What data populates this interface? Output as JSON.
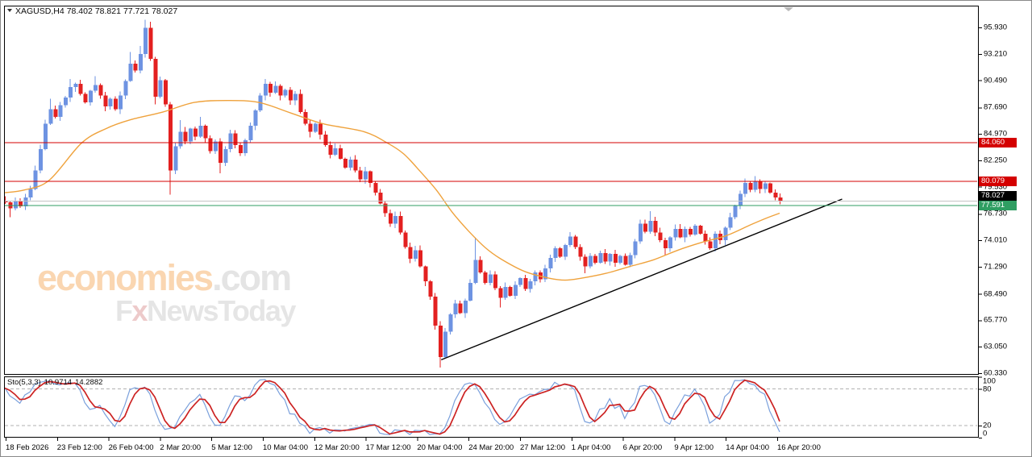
{
  "title": {
    "symbol": "XAGUSD,H4",
    "open": "78.402",
    "high": "78.821",
    "low": "77.721",
    "close": "78.027"
  },
  "watermark": {
    "brand": "economies",
    "domain": ".com",
    "fx_f": "F",
    "fx_x": "x",
    "fx_rest": "NewsToday"
  },
  "sto": {
    "label": "Sto(5,3,3)",
    "value_main": "10.9714",
    "value_signal": "14.2882",
    "params": [
      5,
      3,
      3
    ],
    "levels": [
      "100",
      "80",
      "20",
      "0"
    ],
    "level_values": [
      100,
      80,
      20,
      0
    ],
    "colors": {
      "main": "#7aa0dc",
      "signal": "#cc2222",
      "level_dash": "#b0b0b0"
    }
  },
  "price_axis": {
    "ticks": [
      "95.930",
      "93.210",
      "90.490",
      "87.690",
      "84.970",
      "82.250",
      "79.530",
      "76.730",
      "74.010",
      "71.290",
      "68.490",
      "65.770",
      "63.050",
      "60.330"
    ]
  },
  "time_axis": {
    "labels": [
      "18 Feb 2026",
      "23 Feb 12:00",
      "26 Feb 04:00",
      "2 Mar 20:00",
      "5 Mar 12:00",
      "10 Mar 04:00",
      "12 Mar 20:00",
      "17 Mar 12:00",
      "20 Mar 04:00",
      "24 Mar 20:00",
      "27 Mar 12:00",
      "1 Apr 04:00",
      "6 Apr 20:00",
      "9 Apr 12:00",
      "14 Apr 04:00",
      "16 Apr 20:00"
    ]
  },
  "chart_data": {
    "type": "candlestick",
    "symbol": "XAGUSD",
    "timeframe": "H4",
    "ylim": [
      60.24,
      98.17
    ],
    "pre_closes": [
      76.5,
      76.9,
      77.4,
      77.8,
      78.1
    ],
    "closes": [
      77.9,
      77.3,
      78.0,
      77.5,
      78.4,
      79.3,
      81.2,
      83.4,
      86.0,
      87.5,
      86.7,
      87.9,
      88.7,
      89.8,
      90.1,
      89.1,
      88.2,
      89.4,
      90.0,
      88.9,
      87.8,
      88.6,
      87.5,
      88.9,
      90.4,
      92.2,
      91.5,
      93.2,
      95.9,
      92.7,
      88.8,
      90.5,
      88.0,
      81.2,
      83.7,
      85.2,
      84.2,
      85.5,
      84.7,
      85.8,
      84.5,
      83.2,
      84.2,
      82.0,
      83.4,
      85.0,
      83.8,
      83.0,
      84.3,
      85.8,
      87.4,
      88.9,
      90.1,
      89.2,
      89.9,
      88.9,
      89.5,
      88.4,
      89.1,
      87.2,
      86.0,
      85.2,
      86.0,
      84.9,
      83.8,
      82.8,
      83.5,
      82.4,
      81.5,
      82.3,
      81.2,
      80.3,
      81.1,
      79.9,
      78.9,
      77.8,
      76.8,
      75.7,
      76.5,
      74.8,
      73.3,
      72.1,
      73.0,
      71.3,
      69.8,
      68.2,
      65.2,
      62.0,
      64.6,
      66.4,
      67.5,
      66.5,
      67.8,
      69.6,
      72.0,
      70.7,
      69.6,
      70.5,
      69.1,
      68.1,
      69.2,
      68.3,
      69.4,
      70.1,
      69.0,
      69.8,
      70.7,
      70.0,
      71.1,
      72.2,
      73.2,
      72.3,
      73.5,
      74.4,
      73.3,
      72.3,
      71.3,
      72.4,
      71.7,
      72.7,
      71.8,
      72.6,
      71.7,
      72.4,
      71.5,
      72.5,
      73.9,
      75.7,
      74.9,
      76.0,
      74.8,
      74.0,
      73.2,
      74.3,
      75.2,
      74.3,
      75.2,
      74.6,
      75.5,
      74.7,
      73.9,
      73.2,
      74.7,
      74.0,
      75.3,
      76.4,
      77.6,
      78.8,
      79.9,
      79.2,
      80.05,
      79.3,
      79.85,
      78.9,
      78.4,
      78.027
    ],
    "first_open": 77.6,
    "special_wicks": {
      "1": {
        "l": 76.4
      },
      "9": {
        "h": 88.6
      },
      "13": {
        "h": 90.6
      },
      "18": {
        "h": 90.9
      },
      "25": {
        "h": 93.4
      },
      "27": {
        "h": 94.0
      },
      "28": {
        "h": 96.7
      },
      "29": {
        "h": 96.5
      },
      "30": {
        "l": 88.0
      },
      "33": {
        "l": 78.7
      },
      "35": {
        "h": 86.4
      },
      "39": {
        "h": 86.7
      },
      "43": {
        "l": 80.9
      },
      "52": {
        "h": 90.6
      },
      "61": {
        "l": 84.6
      },
      "87": {
        "l": 60.9
      },
      "94": {
        "h": 74.3
      },
      "99": {
        "l": 67.1
      },
      "116": {
        "l": 70.6
      },
      "129": {
        "h": 77.0
      },
      "132": {
        "l": 72.5
      },
      "148": {
        "h": 80.35
      },
      "150": {
        "h": 80.6
      },
      "155": {
        "h": 78.821,
        "l": 77.721
      }
    },
    "colors": {
      "up": "#6e93e2",
      "down": "#e32020",
      "ma": "#efa23c",
      "trendline": "#000000"
    },
    "ma_points": [
      [
        -0.2,
        78.9
      ],
      [
        4,
        79.2
      ],
      [
        8.9,
        80.2
      ],
      [
        15.3,
        84.0
      ],
      [
        20.2,
        85.5
      ],
      [
        25,
        86.4
      ],
      [
        31.5,
        87.2
      ],
      [
        37.9,
        88.2
      ],
      [
        44.4,
        88.4
      ],
      [
        50.8,
        88.2
      ],
      [
        57.3,
        87.1
      ],
      [
        63.7,
        86.0
      ],
      [
        71.8,
        85.2
      ],
      [
        76.6,
        84.0
      ],
      [
        79.8,
        82.9
      ],
      [
        83.1,
        81.1
      ],
      [
        86.3,
        79.2
      ],
      [
        89.5,
        76.9
      ],
      [
        92.7,
        75.0
      ],
      [
        96,
        73.3
      ],
      [
        99.2,
        72.1
      ],
      [
        104,
        70.8
      ],
      [
        108.9,
        70.1
      ],
      [
        112.1,
        69.9
      ],
      [
        115.3,
        70.1
      ],
      [
        120.2,
        70.6
      ],
      [
        125,
        71.3
      ],
      [
        129.8,
        72.0
      ],
      [
        134.7,
        73.0
      ],
      [
        139.5,
        73.8
      ],
      [
        144.4,
        74.5
      ],
      [
        149.2,
        75.6
      ],
      [
        152.4,
        76.3
      ],
      [
        155,
        76.8
      ]
    ],
    "hlines": [
      {
        "price": 84.06,
        "label": "84.060",
        "color": "#d40000",
        "box": "#d40000",
        "width": 1.2
      },
      {
        "price": 80.079,
        "label": "80.079",
        "color": "#d40000",
        "box": "#d40000",
        "width": 1.2
      },
      {
        "price": 78.027,
        "label": "78.027",
        "color": "#c4c4c4",
        "box": "#000000",
        "width": 1
      },
      {
        "price": 77.591,
        "label": "77.591",
        "color": "#2f9e62",
        "box": "#2f9e62",
        "width": 1.2
      }
    ],
    "trendline": {
      "from": {
        "index": 87.3,
        "price": 61.7
      },
      "to": {
        "index": 167.5,
        "price": 78.25
      }
    }
  }
}
